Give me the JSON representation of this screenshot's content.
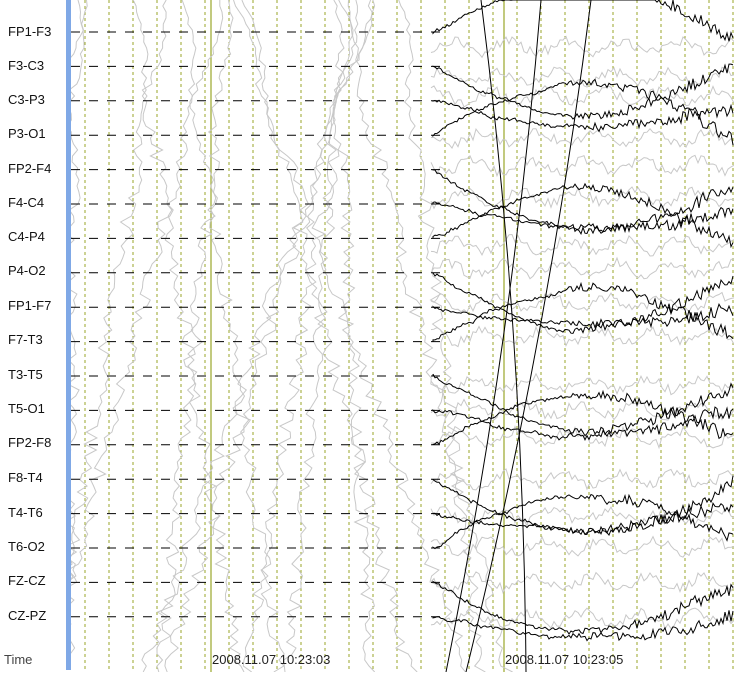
{
  "channels": [
    "FP1-F3",
    "F3-C3",
    "C3-P3",
    "P3-O1",
    "FP2-F4",
    "F4-C4",
    "C4-P4",
    "P4-O2",
    "FP1-F7",
    "F7-T3",
    "T3-T5",
    "T5-O1",
    "FP2-F8",
    "F8-T4",
    "T4-T6",
    "T6-O2",
    "FZ-CZ",
    "CZ-PZ"
  ],
  "time_axis": {
    "label": "Time",
    "timestamps": [
      "2008.11.07 10:23:03",
      "2008.11.07 10:23:05"
    ]
  },
  "colors": {
    "scrollbar": "#7fa8e6",
    "gridline": "#9aa62a",
    "baseline_dash": "#000000",
    "trace_active": "#000000",
    "trace_history": "#c8c8c8"
  }
}
